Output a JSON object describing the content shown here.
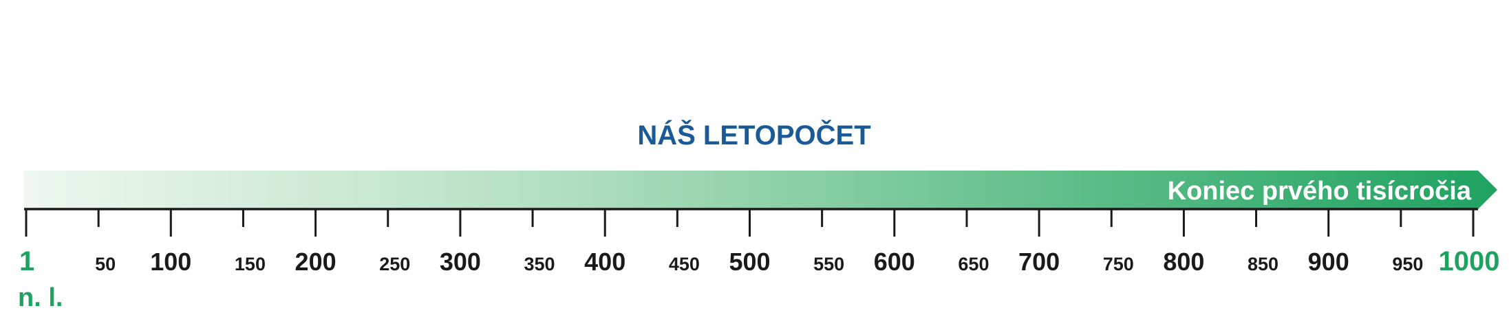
{
  "title": "NÁŠ LETOPOČET",
  "band_label": "Koniec prvého tisícročia",
  "era_label": "n. l.",
  "colors": {
    "title": "#1a5a96",
    "band_start": "#eef7f0",
    "band_end": "#1fa260",
    "accent": "#1fa260",
    "axis": "#1a1a1a"
  },
  "chart_data": {
    "type": "timeline",
    "xlim": [
      1,
      1000
    ],
    "ticks": [
      {
        "value": 1,
        "label": "1",
        "kind": "accent"
      },
      {
        "value": 50,
        "label": "50",
        "kind": "minor"
      },
      {
        "value": 100,
        "label": "100",
        "kind": "major"
      },
      {
        "value": 150,
        "label": "150",
        "kind": "minor"
      },
      {
        "value": 200,
        "label": "200",
        "kind": "major"
      },
      {
        "value": 250,
        "label": "250",
        "kind": "minor"
      },
      {
        "value": 300,
        "label": "300",
        "kind": "major"
      },
      {
        "value": 350,
        "label": "350",
        "kind": "minor"
      },
      {
        "value": 400,
        "label": "400",
        "kind": "major"
      },
      {
        "value": 450,
        "label": "450",
        "kind": "minor"
      },
      {
        "value": 500,
        "label": "500",
        "kind": "major"
      },
      {
        "value": 550,
        "label": "550",
        "kind": "minor"
      },
      {
        "value": 600,
        "label": "600",
        "kind": "major"
      },
      {
        "value": 650,
        "label": "650",
        "kind": "minor"
      },
      {
        "value": 700,
        "label": "700",
        "kind": "major"
      },
      {
        "value": 750,
        "label": "750",
        "kind": "minor"
      },
      {
        "value": 800,
        "label": "800",
        "kind": "major"
      },
      {
        "value": 850,
        "label": "850",
        "kind": "minor"
      },
      {
        "value": 900,
        "label": "900",
        "kind": "major"
      },
      {
        "value": 950,
        "label": "950",
        "kind": "minor"
      },
      {
        "value": 1000,
        "label": "1000",
        "kind": "accent"
      }
    ]
  }
}
